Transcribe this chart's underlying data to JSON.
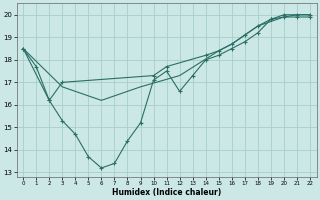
{
  "xlabel": "Humidex (Indice chaleur)",
  "bg_color": "#cce8e6",
  "line_color": "#2a6e66",
  "grid_color": "#a8ceca",
  "xlim": [
    -0.5,
    22.5
  ],
  "ylim": [
    12.8,
    20.5
  ],
  "xticks": [
    0,
    1,
    2,
    3,
    4,
    5,
    6,
    7,
    8,
    9,
    10,
    11,
    12,
    13,
    14,
    15,
    16,
    17,
    18,
    19,
    20,
    21,
    22
  ],
  "yticks": [
    13,
    14,
    15,
    16,
    17,
    18,
    19,
    20
  ],
  "line1_x": [
    0,
    1,
    2,
    3,
    4,
    5,
    6,
    7,
    8,
    9,
    10,
    11,
    12,
    13,
    14,
    15,
    16,
    17,
    18,
    19,
    20,
    21,
    22
  ],
  "line1_y": [
    18.5,
    17.7,
    16.2,
    15.3,
    14.7,
    13.7,
    13.2,
    13.4,
    14.4,
    15.2,
    17.1,
    17.5,
    16.6,
    17.3,
    18.0,
    18.2,
    18.5,
    18.8,
    19.2,
    19.8,
    19.9,
    19.9,
    19.9
  ],
  "line2_x": [
    0,
    2,
    3,
    10,
    11,
    14,
    15,
    16,
    17,
    18,
    19,
    20,
    21,
    22
  ],
  "line2_y": [
    18.5,
    16.2,
    17.0,
    17.3,
    17.7,
    18.2,
    18.4,
    18.7,
    19.1,
    19.5,
    19.8,
    20.0,
    20.0,
    20.0
  ],
  "line3_x": [
    0,
    3,
    6,
    9,
    12,
    15,
    16,
    17,
    18,
    19,
    20,
    21,
    22
  ],
  "line3_y": [
    18.5,
    16.8,
    16.2,
    16.8,
    17.3,
    18.4,
    18.7,
    19.1,
    19.5,
    19.7,
    19.9,
    20.0,
    20.0
  ]
}
